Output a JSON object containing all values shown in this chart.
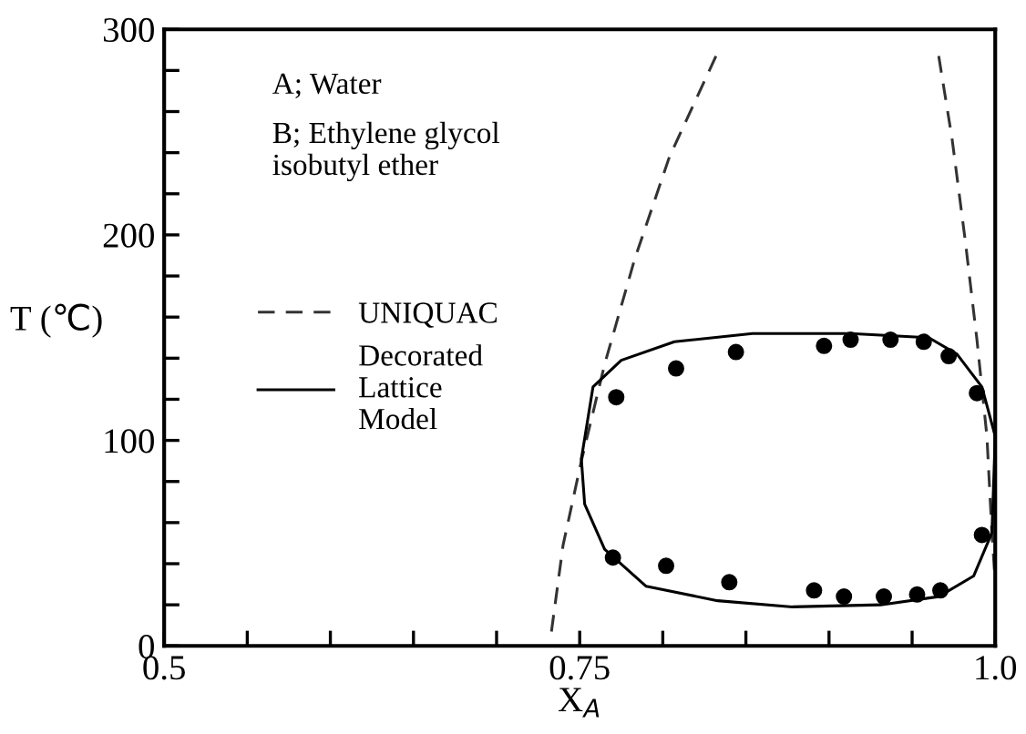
{
  "chart_data": {
    "type": "line",
    "xlabel": "X$_{A}$",
    "ylabel": "T (℃)",
    "xlim": [
      0.5,
      1.0
    ],
    "ylim": [
      0,
      300
    ],
    "xticks": [
      0.5,
      {
        "value": 0.55,
        "label": null
      },
      {
        "value": 0.6,
        "label": null
      },
      {
        "value": 0.65,
        "label": null
      },
      {
        "value": 0.7,
        "label": null
      },
      {
        "value": 0.75,
        "label": "0.75"
      },
      {
        "value": 0.8,
        "label": null
      },
      {
        "value": 0.85,
        "label": null
      },
      {
        "value": 0.9,
        "label": null
      },
      {
        "value": 0.95,
        "label": null
      },
      {
        "value": 1.0,
        "label": "1.0"
      }
    ],
    "yticks": [
      0,
      {
        "value": 20,
        "label": null
      },
      {
        "value": 40,
        "label": null
      },
      {
        "value": 60,
        "label": null
      },
      {
        "value": 80,
        "label": null
      },
      100,
      {
        "value": 120,
        "label": null
      },
      {
        "value": 140,
        "label": null
      },
      {
        "value": 160,
        "label": null
      },
      {
        "value": 180,
        "label": null
      },
      200,
      {
        "value": 220,
        "label": null
      },
      {
        "value": 240,
        "label": null
      },
      {
        "value": 260,
        "label": null
      },
      {
        "value": 280,
        "label": null
      },
      300
    ],
    "grid": false,
    "legend": "left",
    "annotations": [
      "A; Water",
      "B; Ethylene glycol\nisobutyl ether"
    ],
    "series": [
      {
        "name": "UNIQUAC",
        "type": "line",
        "line_style": "dashed",
        "color": "#333333",
        "x": [
          0.733,
          0.74,
          0.751,
          0.765,
          0.783,
          0.804,
          0.832,
          null,
          0.966,
          0.974,
          0.982,
          0.989,
          0.995,
          0.998,
          1.0
        ],
        "values": [
          7,
          49,
          90,
          137,
          188,
          238,
          287,
          null,
          287,
          247,
          197,
          149,
          102,
          55,
          31
        ]
      },
      {
        "name": "Decorated Lattice Model",
        "type": "line",
        "line_style": "solid",
        "color": "#000000",
        "x": [
          0.751,
          0.758,
          0.775,
          0.807,
          0.854,
          0.913,
          0.96,
          0.977,
          0.992,
          1.0,
          null,
          0.751,
          0.753,
          0.765,
          0.79,
          0.833,
          0.878,
          0.931,
          0.966,
          0.987,
          0.998,
          0.999,
          1.0
        ],
        "values": [
          91,
          126,
          139,
          148,
          152,
          152,
          150,
          142,
          126,
          102,
          null,
          91,
          69,
          47,
          29,
          22,
          19,
          20,
          24,
          34,
          55,
          78,
          102
        ]
      },
      {
        "type": "scatter",
        "marker": "circle",
        "color": "#000000",
        "x": [
          0.772,
          0.808,
          0.844,
          0.897,
          0.913,
          0.937,
          0.957,
          0.972,
          0.989,
          0.77,
          0.802,
          0.84,
          0.891,
          0.909,
          0.933,
          0.953,
          0.967,
          0.992
        ],
        "values": [
          121,
          135,
          143,
          146,
          149,
          149,
          148,
          141,
          123,
          43,
          39,
          31,
          27,
          24,
          24,
          25,
          27,
          54
        ]
      }
    ]
  }
}
